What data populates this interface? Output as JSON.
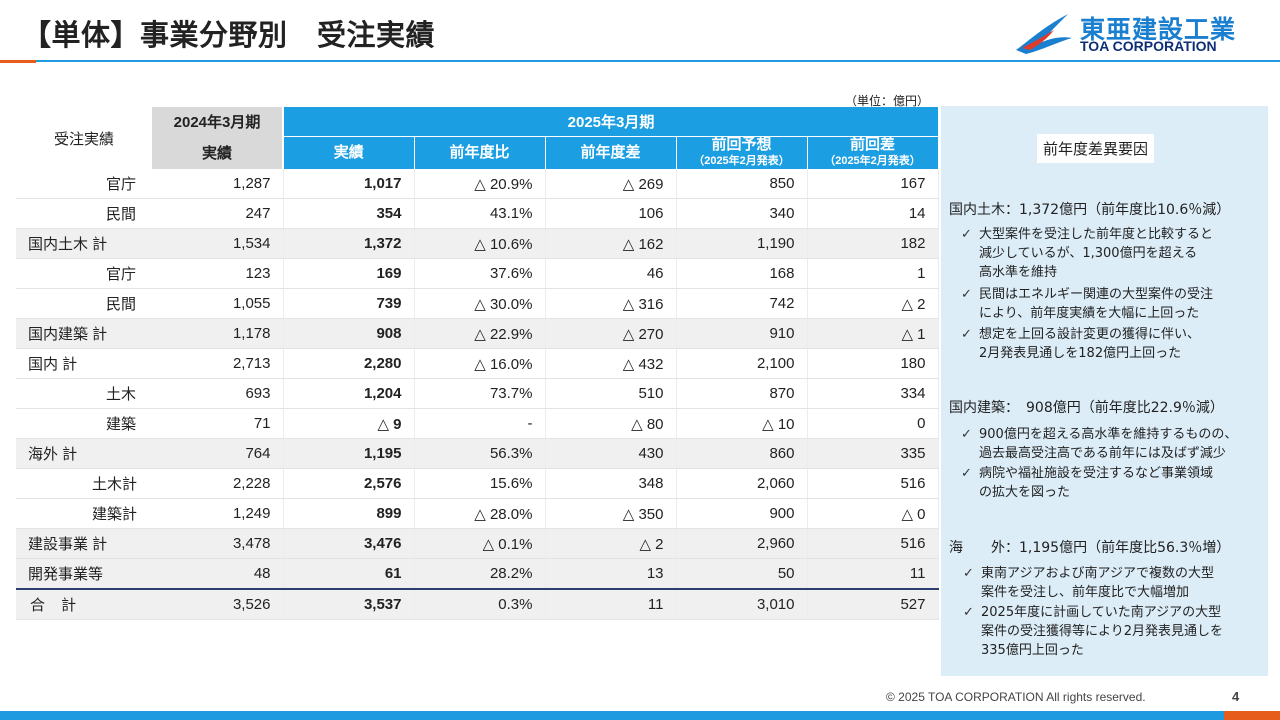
{
  "header": {
    "title": "【単体】事業分野別　受注実績"
  },
  "logo": {
    "jp": "東亜建設工業",
    "en": "TOA CORPORATION"
  },
  "unit_note": "（単位：億円）",
  "table": {
    "corner_label": "受注実績",
    "period_prev": "2024年3月期",
    "period_curr": "2025年3月期",
    "col_prev_actual": "実績",
    "col_actual": "実績",
    "col_yoy_ratio": "前年度比",
    "col_yoy_diff": "前年度差",
    "col_forecast": "前回予想",
    "col_forecast_note": "（2025年2月発表）",
    "col_forecast_diff": "前回差",
    "col_forecast_diff_note": "（2025年2月発表）",
    "rows": [
      {
        "label": "官庁",
        "prev": "1,287",
        "actual": "1,017",
        "ratio": "△ 20.9%",
        "diff": "△ 269",
        "forecast": "850",
        "fdiff": "167"
      },
      {
        "label": "民間",
        "prev": "247",
        "actual": "354",
        "ratio": "43.1%",
        "diff": "106",
        "forecast": "340",
        "fdiff": "14"
      },
      {
        "label": "国内土木 計",
        "prev": "1,534",
        "actual": "1,372",
        "ratio": "△ 10.6%",
        "diff": "△ 162",
        "forecast": "1,190",
        "fdiff": "182"
      },
      {
        "label": "官庁",
        "prev": "123",
        "actual": "169",
        "ratio": "37.6%",
        "diff": "46",
        "forecast": "168",
        "fdiff": "1"
      },
      {
        "label": "民間",
        "prev": "1,055",
        "actual": "739",
        "ratio": "△ 30.0%",
        "diff": "△ 316",
        "forecast": "742",
        "fdiff": "△ 2"
      },
      {
        "label": "国内建築 計",
        "prev": "1,178",
        "actual": "908",
        "ratio": "△ 22.9%",
        "diff": "△ 270",
        "forecast": "910",
        "fdiff": "△ 1"
      },
      {
        "label": "国内 計",
        "prev": "2,713",
        "actual": "2,280",
        "ratio": "△ 16.0%",
        "diff": "△ 432",
        "forecast": "2,100",
        "fdiff": "180"
      },
      {
        "label": "土木",
        "prev": "693",
        "actual": "1,204",
        "ratio": "73.7%",
        "diff": "510",
        "forecast": "870",
        "fdiff": "334"
      },
      {
        "label": "建築",
        "prev": "71",
        "actual": "△ 9",
        "ratio": "-",
        "diff": "△ 80",
        "forecast": "△ 10",
        "fdiff": "0"
      },
      {
        "label": "海外 計",
        "prev": "764",
        "actual": "1,195",
        "ratio": "56.3%",
        "diff": "430",
        "forecast": "860",
        "fdiff": "335"
      },
      {
        "label": "土木計",
        "prev": "2,228",
        "actual": "2,576",
        "ratio": "15.6%",
        "diff": "348",
        "forecast": "2,060",
        "fdiff": "516"
      },
      {
        "label": "建築計",
        "prev": "1,249",
        "actual": "899",
        "ratio": "△ 28.0%",
        "diff": "△ 350",
        "forecast": "900",
        "fdiff": "△ 0"
      },
      {
        "label": "建設事業 計",
        "prev": "3,478",
        "actual": "3,476",
        "ratio": "△ 0.1%",
        "diff": "△ 2",
        "forecast": "2,960",
        "fdiff": "516"
      },
      {
        "label": "開発事業等",
        "prev": "48",
        "actual": "61",
        "ratio": "28.2%",
        "diff": "13",
        "forecast": "50",
        "fdiff": "11"
      },
      {
        "label": "合 計",
        "prev": "3,526",
        "actual": "3,537",
        "ratio": "0.3%",
        "diff": "11",
        "forecast": "3,010",
        "fdiff": "527"
      }
    ]
  },
  "side": {
    "title": "前年度差異要因",
    "sec1": {
      "heading": "国内土木：1,372億円（前年度比10.6％減）",
      "b1": [
        "大型案件を受注した前年度と比較すると",
        "減少しているが、1,300億円を超える",
        "高水準を維持"
      ],
      "b2": [
        "民間はエネルギー関連の大型案件の受注",
        "により、前年度実績を大幅に上回った"
      ],
      "b3": [
        "想定を上回る設計変更の獲得に伴い、",
        "2月発表見通しを182億円上回った"
      ]
    },
    "sec2": {
      "heading": "国内建築：　908億円（前年度比22.9％減）",
      "b1": [
        "900億円を超える高水準を維持するものの、",
        "過去最高受注高である前年には及ばず減少"
      ],
      "b2": [
        "病院や福祉施設を受注するなど事業領域",
        "の拡大を図った"
      ]
    },
    "sec3": {
      "heading": "海　　外：1,195億円（前年度比56.3％増）",
      "b1": [
        "東南アジアおよび南アジアで複数の大型",
        "案件を受注し、前年度比で大幅増加"
      ],
      "b2": [
        "2025年度に計画していた南アジアの大型",
        "案件の受注獲得等により2月発表見通しを",
        "335億円上回った"
      ]
    }
  },
  "footer": {
    "copyright": "© 2025 TOA CORPORATION  All rights reserved.",
    "page": "4"
  }
}
